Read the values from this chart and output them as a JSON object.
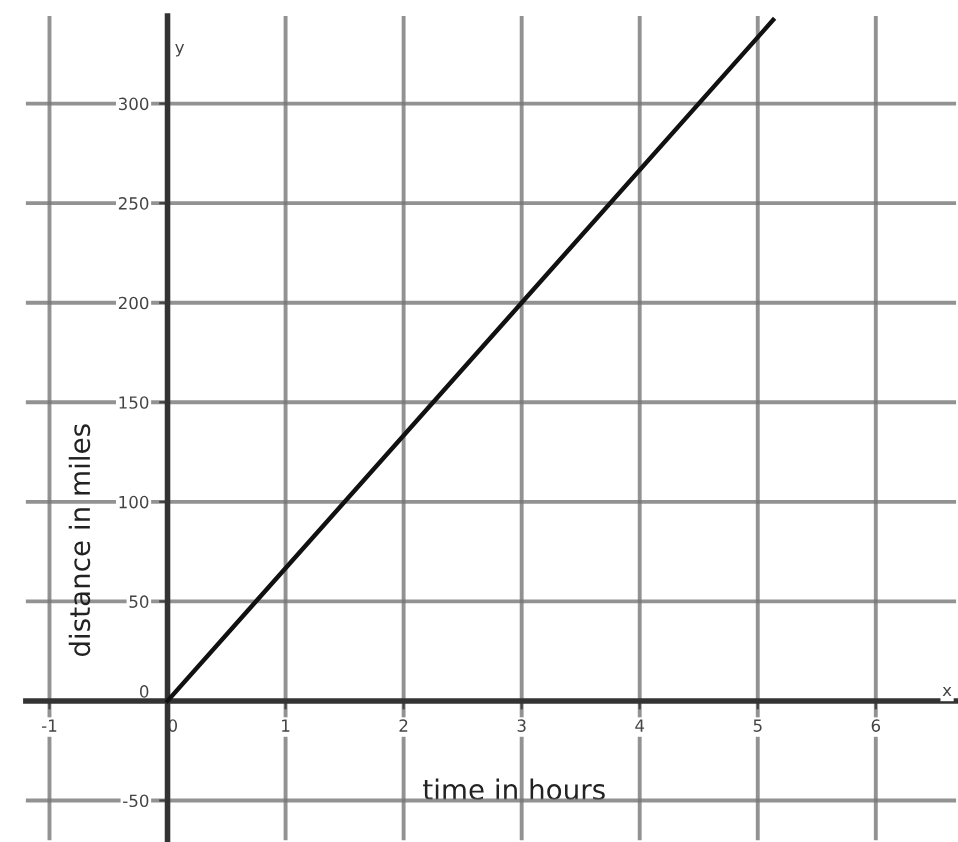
{
  "chart_data": {
    "type": "line",
    "xlabel": "time in hours",
    "ylabel": "distance in miles",
    "x": [
      0,
      5.13
    ],
    "series": [
      {
        "color": "#111111",
        "values": [
          0,
          342
        ]
      }
    ],
    "xlim": [
      -1.2,
      6.68
    ],
    "ylim": [
      -70,
      344
    ],
    "xticks": [
      -1,
      0,
      1,
      2,
      3,
      4,
      5,
      6
    ],
    "yticks": [
      -50,
      0,
      50,
      100,
      150,
      200,
      250,
      300
    ],
    "grid": true,
    "marker": "none",
    "line_style": "solid",
    "annotations": [
      "x",
      "y"
    ]
  }
}
